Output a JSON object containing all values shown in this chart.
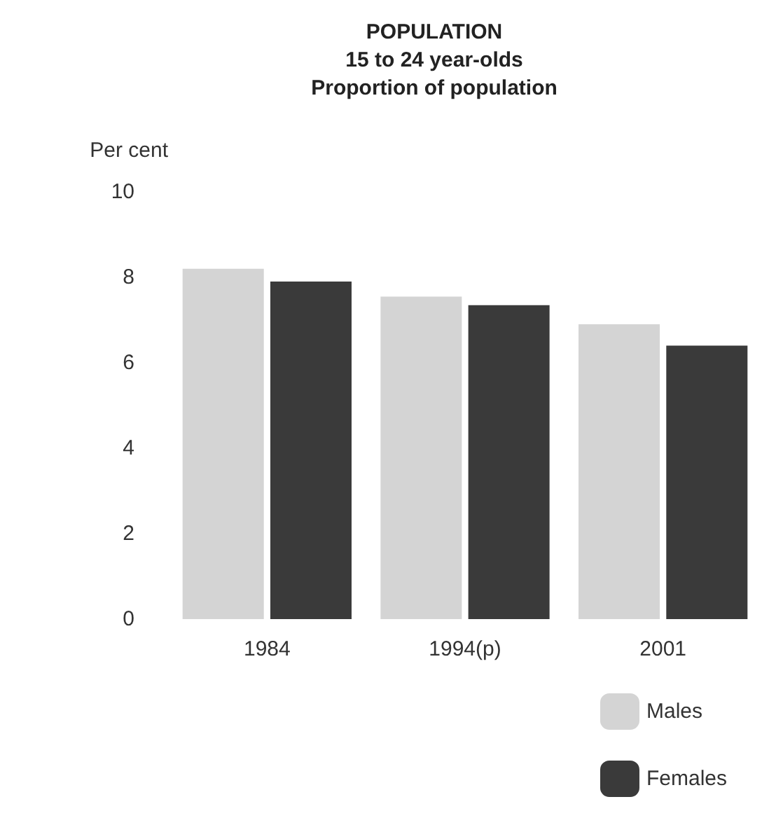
{
  "chart_data": {
    "type": "bar",
    "title": "POPULATION\n15 to 24 year-olds\nProportion of population",
    "ylabel": "Per cent",
    "categories": [
      "1984",
      "1994(p)",
      "2001"
    ],
    "series": [
      {
        "name": "Males",
        "color": "#d4d4d4",
        "values": [
          8.2,
          7.55,
          6.9
        ]
      },
      {
        "name": "Females",
        "color": "#3a3a3a",
        "values": [
          7.9,
          7.35,
          6.4
        ]
      }
    ],
    "ylim": [
      0,
      10
    ],
    "yticks": [
      0,
      2,
      4,
      6,
      8,
      10
    ],
    "legend": "bottom right"
  }
}
